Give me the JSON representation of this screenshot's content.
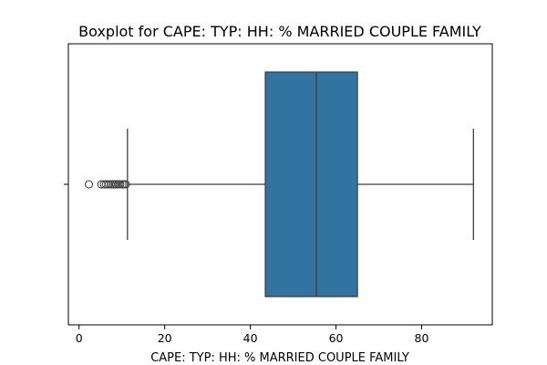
{
  "chart_data": {
    "type": "boxplot",
    "title": "Boxplot for CAPE: TYP: HH: % MARRIED COUPLE FAMILY",
    "xlabel": "CAPE: TYP: HH: % MARRIED COUPLE FAMILY",
    "ylabel": "",
    "xlim": [
      -2.5,
      96.5
    ],
    "xticks": [
      0,
      20,
      40,
      60,
      80
    ],
    "box": {
      "whisker_low": 11.3,
      "q1": 43.5,
      "median": 55.4,
      "q3": 65.0,
      "whisker_high": 92.1,
      "color": "#3274a1",
      "edge_color": "#3f3f3f"
    },
    "outliers": [
      2.3,
      5.2,
      5.8,
      6.3,
      6.9,
      7.4,
      7.9,
      8.3,
      8.7,
      9.2,
      9.6,
      10.1,
      10.5,
      10.9
    ],
    "grid": false,
    "legend": "none"
  }
}
